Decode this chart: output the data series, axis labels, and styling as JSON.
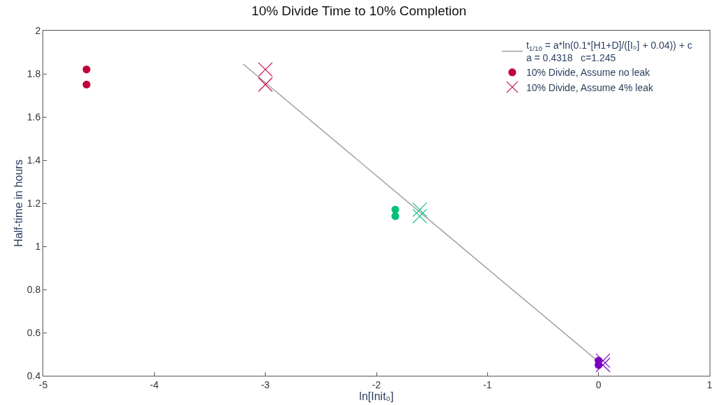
{
  "chart_data": {
    "type": "scatter",
    "title": "10% Divide Time to 10% Completion",
    "xlabel": "ln[Init₀]",
    "ylabel": "Half-time in hours",
    "xlim": [
      -5,
      1
    ],
    "xticks": [
      -5,
      -4,
      -3,
      -2,
      -1,
      0,
      1
    ],
    "ylim": [
      0.4,
      2
    ],
    "yticks": [
      0.4,
      0.6,
      0.8,
      1,
      1.2,
      1.4,
      1.6,
      1.8,
      2
    ],
    "legend": "top right",
    "series": [
      {
        "type": "line",
        "name": "t$_{1/10}$ = a*ln(0.1*[H1+D]/([I₀] + 0.04)) + c\na = 0.4318   c=1.245",
        "color": "#a0a0a0",
        "x": [
          -3.2,
          0.0
        ],
        "values": [
          1.845,
          0.465
        ]
      },
      {
        "marker": "circle",
        "name": "10% Divide, Assume no leak",
        "color": "#c0003c",
        "x": [
          -4.61,
          -4.61,
          -1.83,
          -1.83,
          0,
          0
        ],
        "values": [
          1.82,
          1.75,
          1.17,
          1.14,
          0.47,
          0.45
        ],
        "colors": [
          "#c0003c",
          "#c0003c",
          "#00c07a",
          "#00c07a",
          "#7a00c0",
          "#7a00c0"
        ]
      },
      {
        "marker": "cross",
        "name": "10% Divide, Assume 4% leak",
        "color": "#c8104a",
        "x": [
          -3.0,
          -3.0,
          -1.61,
          -1.61,
          0.04,
          0.04
        ],
        "values": [
          1.82,
          1.75,
          1.17,
          1.14,
          0.47,
          0.45
        ],
        "colors": [
          "#c8104a",
          "#c8104a",
          "#10c080",
          "#10c080",
          "#8010c8",
          "#8010c8"
        ]
      }
    ]
  }
}
